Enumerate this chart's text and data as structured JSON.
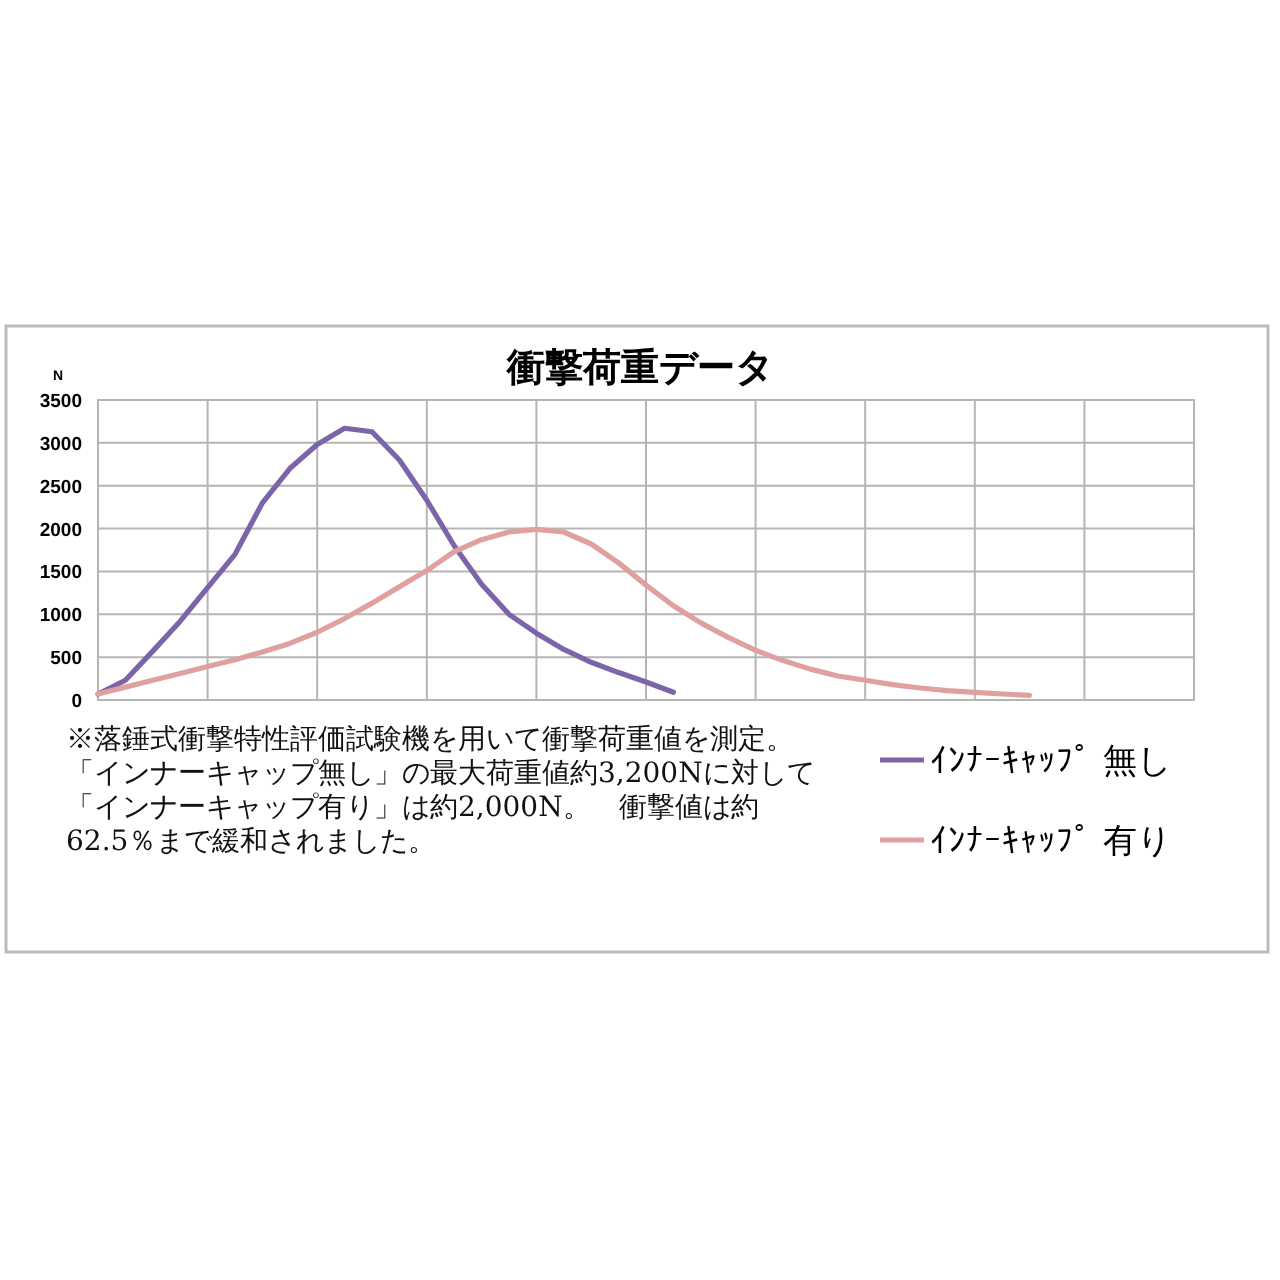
{
  "chart_data": {
    "type": "line",
    "title": "衝撃荷重データ",
    "ylabel": "N",
    "categories": [
      null,
      null,
      null,
      null,
      null,
      null,
      null,
      null,
      null,
      null,
      null,
      null,
      null,
      null,
      null,
      null,
      null,
      null,
      null,
      null,
      null,
      null,
      null,
      null,
      null,
      null,
      null,
      null,
      null,
      null,
      null,
      null,
      null,
      null,
      null,
      null,
      null,
      null,
      null,
      null,
      null
    ],
    "series": [
      {
        "name": "ｲﾝﾅｰｷｬｯﾌﾟ 無し",
        "color": "#7b64a8",
        "values": [
          70,
          230,
          570,
          920,
          1310,
          1700,
          2300,
          2700,
          2980,
          3170,
          3130,
          2800,
          2330,
          1800,
          1350,
          1000,
          780,
          590,
          440,
          320,
          210,
          90,
          null,
          null,
          null,
          null,
          null,
          null,
          null,
          null,
          null,
          null,
          null,
          null,
          null,
          null,
          null,
          null,
          null,
          null,
          null
        ]
      },
      {
        "name": "ｲﾝﾅｰｷｬｯﾌﾟ 有り",
        "color": "#e0a0a0",
        "values": [
          70,
          150,
          230,
          310,
          390,
          470,
          560,
          660,
          790,
          950,
          1130,
          1320,
          1510,
          1730,
          1870,
          1960,
          1990,
          1960,
          1820,
          1600,
          1340,
          1100,
          900,
          730,
          580,
          460,
          360,
          280,
          230,
          180,
          140,
          110,
          90,
          70,
          55,
          null,
          null,
          null,
          null,
          null,
          null
        ]
      }
    ],
    "ylim": [
      0,
      3500
    ],
    "yticks": [
      0,
      500,
      1000,
      1500,
      2000,
      2500,
      3000,
      3500
    ],
    "grid": true,
    "legend": "right",
    "marker": "none",
    "line_style": "solid",
    "annotations": [
      "※落錘式衝撃特性評価試験機を用いて衝撃荷重値を測定。「インナーキャップ無し」の最大荷重値約3,200Nに対して「インナーキャップ有り」は約2,000N。　衝撃値は約62.5％まで緩和されました。"
    ]
  }
}
